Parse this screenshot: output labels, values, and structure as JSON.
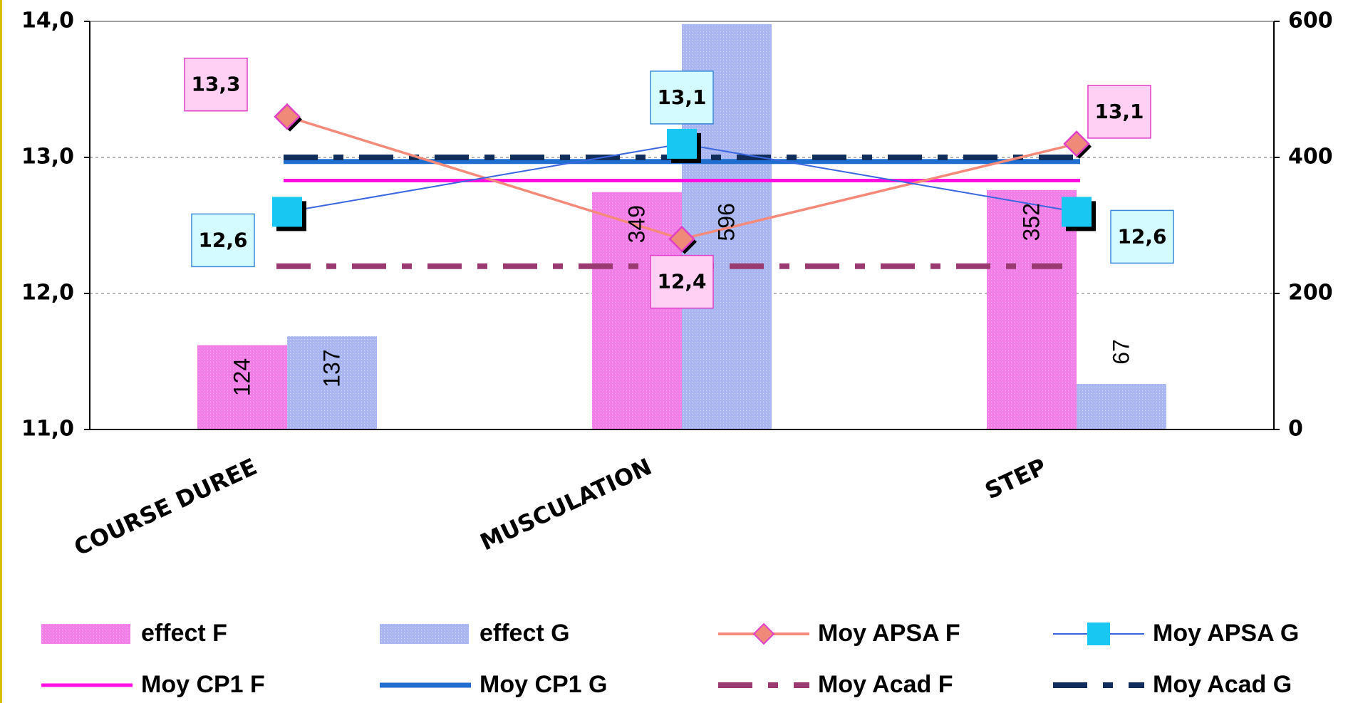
{
  "chart_data": {
    "type": "bar",
    "categories": [
      "COURSE  DUREE",
      "MUSCULATION",
      "STEP"
    ],
    "y_left": {
      "ylim": [
        11.0,
        14.0
      ],
      "ticks": [
        "11,0",
        "12,0",
        "13,0",
        "14,0"
      ],
      "tick_values": [
        11,
        12,
        13,
        14
      ]
    },
    "y_right": {
      "ylim": [
        0,
        600
      ],
      "ticks": [
        "0",
        "200",
        "400",
        "600"
      ],
      "tick_values": [
        0,
        200,
        400,
        600
      ]
    },
    "grid": true,
    "legend_position": "bottom",
    "bar_series": [
      {
        "name": "effect F",
        "values": [
          124,
          349,
          352
        ],
        "labels": [
          "124",
          "349",
          "352"
        ],
        "color": "#f27ee8",
        "axis": "right"
      },
      {
        "name": "effect G",
        "values": [
          137,
          596,
          67
        ],
        "labels": [
          "137",
          "596",
          "67"
        ],
        "color": "#a9b6f2",
        "axis": "right"
      }
    ],
    "line_series": [
      {
        "name": "Moy APSA F",
        "values": [
          13.3,
          12.4,
          13.1
        ],
        "labels": [
          "13,3",
          "12,4",
          "13,1"
        ],
        "color": "#f58a7a",
        "marker": "diamond",
        "marker_color": "#f08a78",
        "marker_edge": "#e040c8",
        "label_bg": "#ffd0f4",
        "label_border": "#e040c8",
        "axis": "left"
      },
      {
        "name": "Moy APSA G",
        "values": [
          12.6,
          13.1,
          12.6
        ],
        "labels": [
          "12,6",
          "13,1",
          "12,6"
        ],
        "color": "#3a66e0",
        "marker": "square",
        "marker_color": "#18c8f2",
        "label_bg": "#d4fbff",
        "label_border": "#3a8ad8",
        "axis": "left"
      },
      {
        "name": "Moy  CP1  F",
        "value": 12.83,
        "color": "#ff10e0",
        "style": "solid",
        "axis": "left"
      },
      {
        "name": "Moy CP1  G",
        "value": 12.97,
        "color": "#1f6ed0",
        "style": "solid-thick",
        "axis": "left"
      },
      {
        "name": "Moy Acad F",
        "value": 12.2,
        "color": "#9a3a70",
        "style": "dashdot",
        "axis": "left"
      },
      {
        "name": "Moy Acad G",
        "value": 13.0,
        "color": "#112d5c",
        "style": "dashdot",
        "axis": "left"
      }
    ]
  }
}
